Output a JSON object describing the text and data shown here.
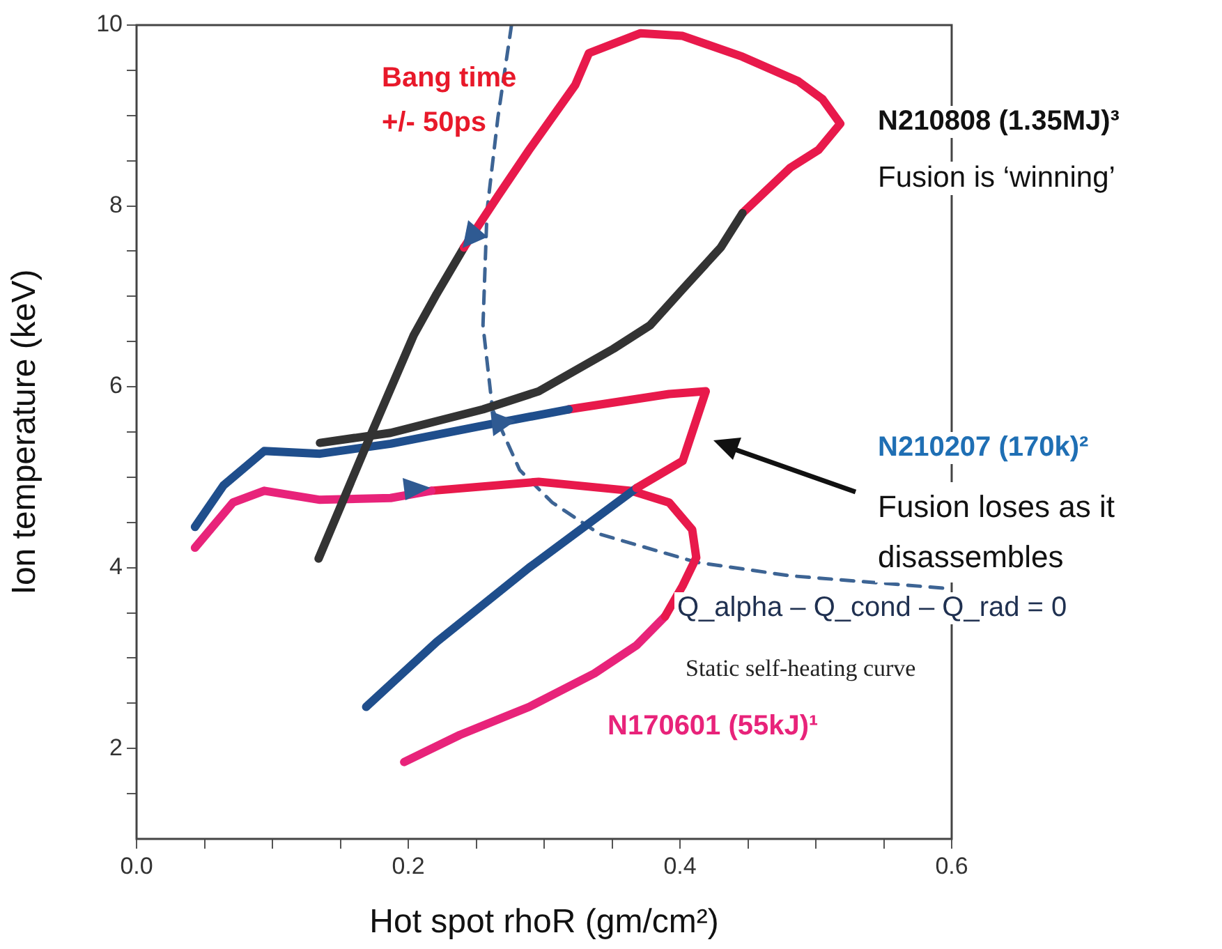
{
  "chart_data": {
    "type": "line",
    "xlabel": "Hot spot rhoR (gm/cm²)",
    "ylabel": "Ion temperature (keV)",
    "xlim": [
      0,
      0.6
    ],
    "ylim": [
      1,
      10
    ],
    "xticks": [
      {
        "value": 0,
        "label": "0.0"
      },
      {
        "value": 0.05,
        "label": null
      },
      {
        "value": 0.1,
        "label": null
      },
      {
        "value": 0.15,
        "label": null
      },
      {
        "value": 0.2,
        "label": "0.2"
      },
      {
        "value": 0.25,
        "label": null
      },
      {
        "value": 0.3,
        "label": null
      },
      {
        "value": 0.35,
        "label": null
      },
      {
        "value": 0.4,
        "label": "0.4"
      },
      {
        "value": 0.45,
        "label": null
      },
      {
        "value": 0.5,
        "label": null
      },
      {
        "value": 0.55,
        "label": null
      },
      {
        "value": 0.6,
        "label": "0.6"
      }
    ],
    "yticks": [
      {
        "value": 1.5,
        "label": null
      },
      2,
      {
        "value": 2.5,
        "label": null
      },
      {
        "value": 3,
        "label": null
      },
      {
        "value": 3.5,
        "label": null
      },
      4,
      {
        "value": 4.5,
        "label": null
      },
      {
        "value": 5,
        "label": null
      },
      {
        "value": 5.5,
        "label": null
      },
      6,
      {
        "value": 6.5,
        "label": null
      },
      {
        "value": 7,
        "label": null
      },
      {
        "value": 7.5,
        "label": null
      },
      8,
      {
        "value": 8.5,
        "label": null
      },
      {
        "value": 9,
        "label": null
      },
      {
        "value": 9.5,
        "label": null
      },
      10
    ],
    "marker": "none",
    "legend": false,
    "series": [
      {
        "color": "#333333",
        "x": [
          0.135,
          0.187,
          0.255,
          0.296,
          0.351,
          0.378,
          0.402,
          0.43,
          0.446
        ],
        "values": [
          5.38,
          5.49,
          5.75,
          5.95,
          6.42,
          6.68,
          7.08,
          7.54,
          7.92
        ]
      },
      {
        "color": "#e8194b",
        "x": [
          0.446,
          0.481,
          0.502,
          0.518,
          0.505,
          0.487,
          0.446,
          0.402,
          0.371,
          0.333,
          0.323,
          0.289,
          0.266,
          0.241
        ],
        "values": [
          7.92,
          8.42,
          8.62,
          8.91,
          9.18,
          9.38,
          9.65,
          9.88,
          9.91,
          9.69,
          9.34,
          8.62,
          8.11,
          7.54
        ]
      },
      {
        "color": "#333333",
        "x": [
          0.241,
          0.221,
          0.204,
          0.173,
          0.134
        ],
        "values": [
          7.54,
          7.03,
          6.57,
          5.49,
          4.1
        ]
      },
      {
        "color": "#1f4e8c",
        "x": [
          0.043,
          0.064,
          0.094,
          0.135,
          0.187,
          0.255,
          0.318
        ],
        "values": [
          4.45,
          4.91,
          5.29,
          5.26,
          5.37,
          5.57,
          5.75
        ]
      },
      {
        "color": "#e8194b",
        "x": [
          0.318,
          0.392,
          0.419,
          0.402,
          0.368
        ],
        "values": [
          5.75,
          5.92,
          5.95,
          5.18,
          4.88
        ]
      },
      {
        "color": "#1f4e8c",
        "x": [
          0.368,
          0.289,
          0.221,
          0.169
        ],
        "values": [
          4.88,
          4.0,
          3.18,
          2.46
        ]
      },
      {
        "color": "#e8237a",
        "x": [
          0.043,
          0.071,
          0.094,
          0.135,
          0.187,
          0.217
        ],
        "values": [
          4.22,
          4.72,
          4.85,
          4.75,
          4.77,
          4.85
        ]
      },
      {
        "color": "#e8194b",
        "x": [
          0.217,
          0.296,
          0.364,
          0.392,
          0.409,
          0.412,
          0.402,
          0.389
        ],
        "values": [
          4.85,
          4.95,
          4.85,
          4.72,
          4.42,
          4.11,
          3.8,
          3.46
        ]
      },
      {
        "color": "#e8237a",
        "x": [
          0.389,
          0.368,
          0.337,
          0.289,
          0.238,
          0.197
        ],
        "values": [
          3.46,
          3.14,
          2.83,
          2.46,
          2.15,
          1.85
        ]
      },
      {
        "color": "#3d6494",
        "line_style": "dashed",
        "x": [
          0.276,
          0.266,
          0.258,
          0.255,
          0.262,
          0.282,
          0.306,
          0.341,
          0.412,
          0.481,
          0.597
        ],
        "values": [
          10.0,
          8.98,
          7.95,
          6.68,
          5.75,
          5.08,
          4.72,
          4.37,
          4.06,
          3.91,
          3.77
        ]
      }
    ],
    "annotations": [
      "Bang time +/- 50ps",
      "N210808 (1.35MJ)³",
      "Fusion is ‘winning’",
      "N210207 (170k)²",
      "Fusion loses as it disassembles",
      "Q_alpha – Q_cond – Q_rad = 0",
      "Static self-heating curve",
      "N170601 (55kJ)¹"
    ]
  }
}
